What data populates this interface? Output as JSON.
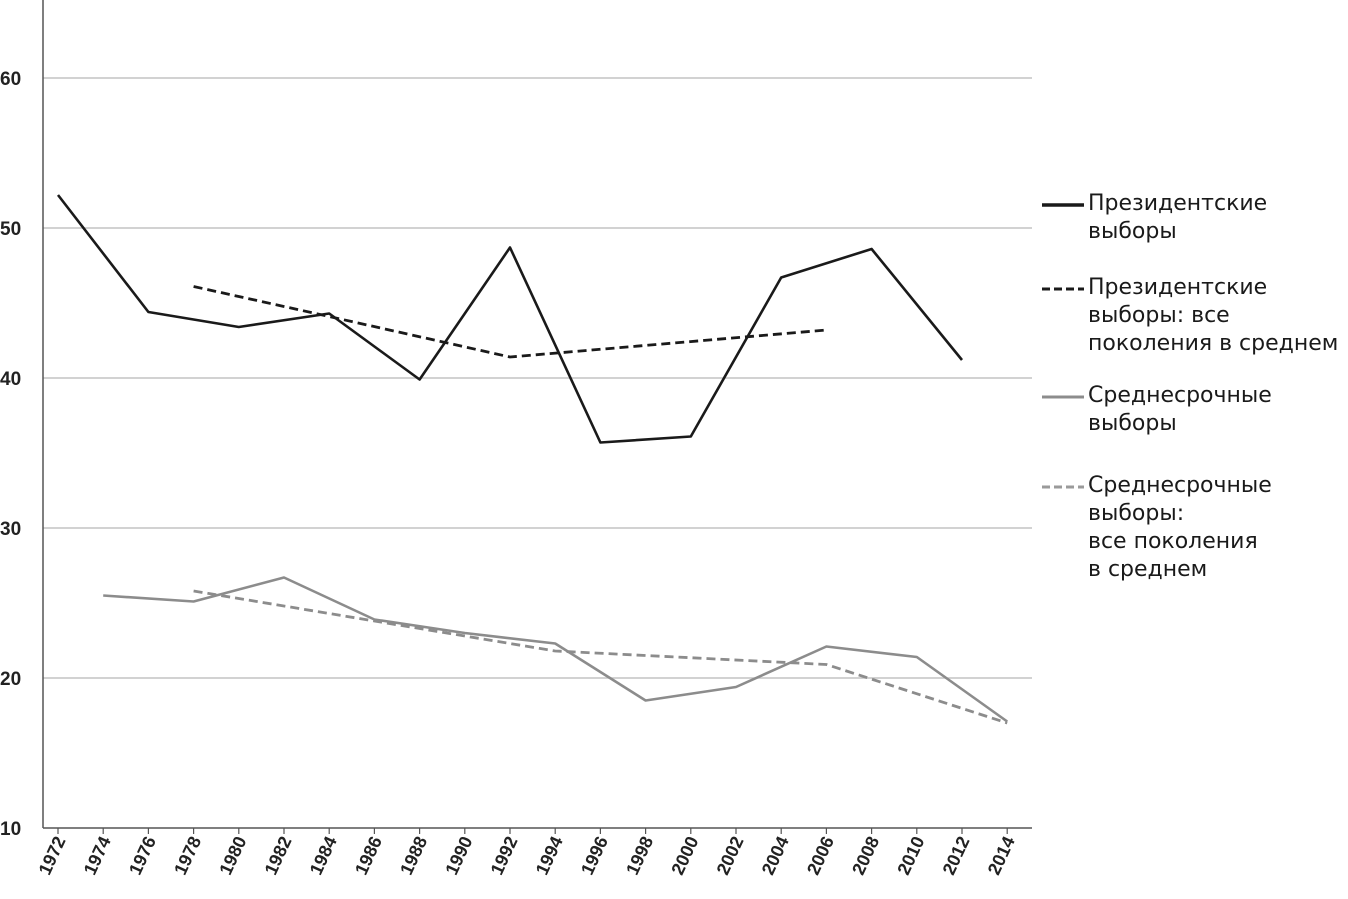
{
  "chart_data": {
    "type": "line",
    "x": [
      1972,
      1974,
      1976,
      1978,
      1980,
      1982,
      1984,
      1986,
      1988,
      1990,
      1992,
      1994,
      1996,
      1998,
      2000,
      2002,
      2004,
      2006,
      2008,
      2010,
      2012,
      2014
    ],
    "xticks": [
      "1972",
      "1974",
      "1976",
      "1978",
      "1980",
      "1982",
      "1984",
      "1986",
      "1988",
      "1990",
      "1992",
      "1994",
      "1996",
      "1998",
      "2000",
      "2002",
      "2004",
      "2006",
      "2008",
      "2010",
      "2012",
      "2014"
    ],
    "yticks": [
      "10",
      "20",
      "30",
      "40",
      "50",
      "60"
    ],
    "ylim": [
      10,
      65
    ],
    "grid": true,
    "legend_position": "right",
    "series": [
      {
        "name": "Президентские\nвыборы",
        "style": "solid",
        "color": "#1a1a1a",
        "points": [
          [
            1972,
            52.2
          ],
          [
            1976,
            44.4
          ],
          [
            1980,
            43.4
          ],
          [
            1984,
            44.3
          ],
          [
            1988,
            39.9
          ],
          [
            1992,
            48.7
          ],
          [
            1996,
            35.7
          ],
          [
            2000,
            36.1
          ],
          [
            2004,
            46.7
          ],
          [
            2008,
            48.6
          ],
          [
            2012,
            41.2
          ]
        ]
      },
      {
        "name": "Президентские\nвыборы: все\nпоколения в среднем",
        "style": "dashed",
        "color": "#1a1a1a",
        "points": [
          [
            1978,
            46.1
          ],
          [
            1984,
            44.1
          ],
          [
            1992,
            41.4
          ],
          [
            2006,
            43.2
          ]
        ]
      },
      {
        "name": "Среднесрочные\nвыборы",
        "style": "solid",
        "color": "#8c8c8c",
        "points": [
          [
            1974,
            25.5
          ],
          [
            1978,
            25.1
          ],
          [
            1982,
            26.7
          ],
          [
            1986,
            23.9
          ],
          [
            1990,
            23.0
          ],
          [
            1994,
            22.3
          ],
          [
            1998,
            18.5
          ],
          [
            2002,
            19.4
          ],
          [
            2006,
            22.1
          ],
          [
            2010,
            21.4
          ],
          [
            2014,
            17.1
          ]
        ]
      },
      {
        "name": "Среднесрочные\nвыборы:\nвсе поколения\nв среднем",
        "style": "dashed",
        "color": "#8c8c8c",
        "points": [
          [
            1978,
            25.8
          ],
          [
            1986,
            23.8
          ],
          [
            1994,
            21.8
          ],
          [
            2006,
            20.9
          ],
          [
            2014,
            17.0
          ]
        ]
      }
    ]
  }
}
